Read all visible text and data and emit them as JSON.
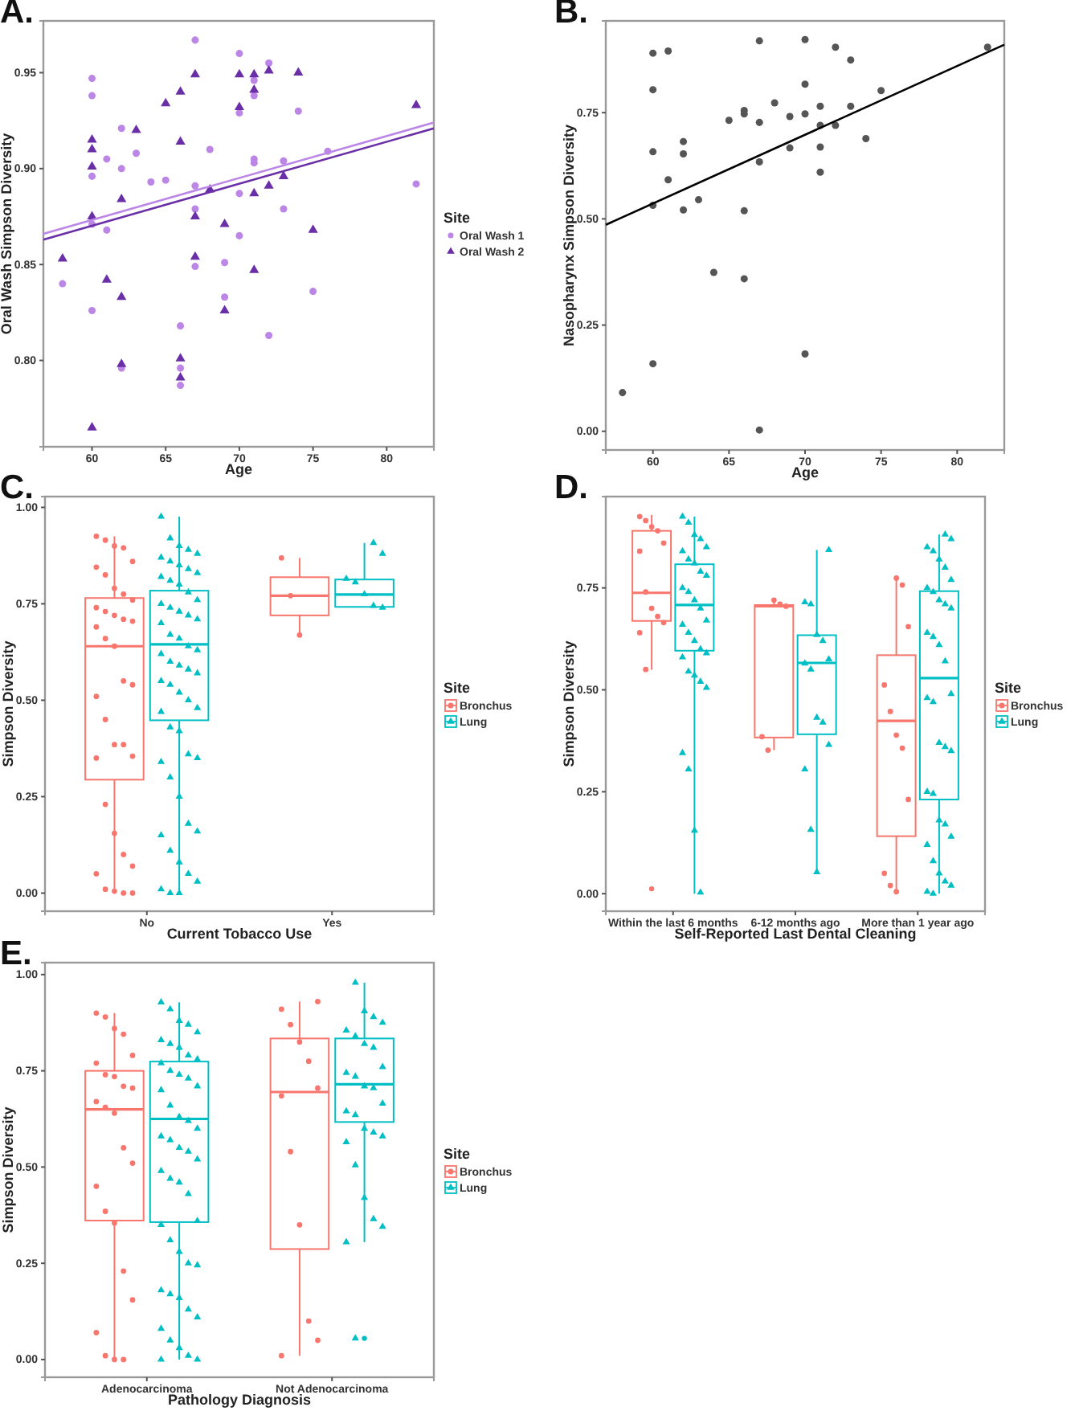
{
  "chart_data": [
    {
      "type": "scatter",
      "title": "A.",
      "xlabel": "Age",
      "ylabel": "Oral Wash Simpson Diversity",
      "legend_title": "Site",
      "legend": "right",
      "xlim": [
        56.7,
        83.2
      ],
      "ylim": [
        0.755,
        0.977
      ],
      "xticks": [
        60,
        65,
        70,
        75,
        80
      ],
      "yticks": [
        {
          "value": 0.8,
          "label": "0.80"
        },
        {
          "value": 0.85,
          "label": "0.85"
        },
        {
          "value": 0.9,
          "label": "0.90"
        },
        {
          "value": 0.95,
          "label": "0.95"
        }
      ],
      "series": [
        {
          "name": "Oral Wash 1",
          "color": "#bb86e6",
          "marker": "circle",
          "x": [
            60,
            60,
            60,
            60,
            60,
            58,
            61,
            61,
            62,
            62,
            62,
            63,
            64,
            65,
            66,
            66,
            66,
            67,
            67,
            67,
            67,
            68,
            69,
            69,
            70,
            70,
            70,
            70,
            71,
            71,
            71,
            71,
            72,
            72,
            73,
            73,
            74,
            75,
            76,
            82
          ],
          "values": [
            0.947,
            0.938,
            0.896,
            0.871,
            0.826,
            0.84,
            0.905,
            0.868,
            0.921,
            0.9,
            0.796,
            0.908,
            0.893,
            0.894,
            0.818,
            0.796,
            0.787,
            0.967,
            0.891,
            0.879,
            0.849,
            0.91,
            0.851,
            0.833,
            0.96,
            0.929,
            0.887,
            0.865,
            0.946,
            0.938,
            0.905,
            0.903,
            0.955,
            0.813,
            0.904,
            0.879,
            0.93,
            0.836,
            0.909,
            0.892
          ]
        },
        {
          "name": "Oral Wash 2",
          "color": "#6a2ea6",
          "marker": "triangle",
          "x": [
            58,
            60,
            60,
            60,
            60,
            60,
            61,
            62,
            62,
            62,
            63,
            65,
            66,
            66,
            66,
            66,
            67,
            67,
            67,
            68,
            69,
            69,
            70,
            70,
            71,
            71,
            71,
            71,
            72,
            72,
            73,
            74,
            75,
            82
          ],
          "values": [
            0.853,
            0.915,
            0.91,
            0.901,
            0.875,
            0.765,
            0.842,
            0.884,
            0.833,
            0.798,
            0.92,
            0.934,
            0.94,
            0.914,
            0.801,
            0.791,
            0.949,
            0.875,
            0.854,
            0.889,
            0.871,
            0.826,
            0.949,
            0.932,
            0.949,
            0.941,
            0.887,
            0.847,
            0.951,
            0.891,
            0.896,
            0.95,
            0.868,
            0.933
          ]
        },
        {
          "type": "line",
          "color": "#bb86e6",
          "x": [
            56.7,
            83.2
          ],
          "values": [
            0.866,
            0.924
          ]
        },
        {
          "type": "line",
          "color": "#6a2ea6",
          "x": [
            56.7,
            83.2
          ],
          "values": [
            0.863,
            0.921
          ]
        }
      ]
    },
    {
      "type": "scatter",
      "title": "B.",
      "xlabel": "Age",
      "ylabel": "Nasopharynx Simpson Diversity",
      "xlim": [
        56.9,
        83.1
      ],
      "ylim": [
        -0.044,
        0.966
      ],
      "xticks": [
        60,
        65,
        70,
        75,
        80
      ],
      "yticks": [
        {
          "value": 0,
          "label": "0.00"
        },
        {
          "value": 0.25,
          "label": "0.25"
        },
        {
          "value": 0.5,
          "label": "0.50"
        },
        {
          "value": 0.75,
          "label": "0.75"
        }
      ],
      "series": [
        {
          "color": "#555555",
          "marker": "circle",
          "x": [
            58,
            60,
            60,
            60,
            60,
            60,
            61,
            61,
            62,
            62,
            62,
            63,
            64,
            65,
            66,
            66,
            66,
            66,
            67,
            67,
            67,
            67,
            68,
            69,
            69,
            70,
            70,
            70,
            70,
            71,
            71,
            71,
            71,
            72,
            72,
            73,
            73,
            74,
            75,
            82
          ],
          "values": [
            0.091,
            0.89,
            0.804,
            0.658,
            0.532,
            0.159,
            0.895,
            0.592,
            0.682,
            0.653,
            0.521,
            0.545,
            0.374,
            0.732,
            0.755,
            0.747,
            0.519,
            0.359,
            0.919,
            0.727,
            0.634,
            0.003,
            0.773,
            0.741,
            0.667,
            0.922,
            0.817,
            0.747,
            0.182,
            0.765,
            0.669,
            0.61,
            0.72,
            0.72,
            0.904,
            0.874,
            0.765,
            0.689,
            0.802,
            0.904
          ]
        },
        {
          "type": "line",
          "color": "#000000",
          "x": [
            56.9,
            83.1
          ],
          "values": [
            0.486,
            0.91
          ]
        }
      ]
    },
    {
      "type": "box",
      "title": "C.",
      "xlabel": "Current Tobacco Use",
      "ylabel": "Simpson Diversity",
      "legend_title": "Site",
      "legend": "right",
      "categories": [
        "No",
        "Yes"
      ],
      "ylim": [
        -0.047,
        1.028
      ],
      "yticks": [
        {
          "value": 0,
          "label": "0.00"
        },
        {
          "value": 0.25,
          "label": "0.25"
        },
        {
          "value": 0.5,
          "label": "0.50"
        },
        {
          "value": 0.75,
          "label": "0.75"
        },
        {
          "value": 1,
          "label": "1.00"
        }
      ],
      "series": [
        {
          "name": "Bronchus",
          "color": "#f8766d",
          "boxes": [
            {
              "low": 0,
              "q1": 0.294,
              "median": 0.64,
              "q3": 0.765,
              "high": 0.925
            },
            {
              "low": 0.669,
              "q1": 0.72,
              "median": 0.771,
              "q3": 0.819,
              "high": 0.869
            }
          ]
        },
        {
          "name": "Lung",
          "color": "#00bfc4",
          "boxes": [
            {
              "low": 0,
              "q1": 0.448,
              "median": 0.645,
              "q3": 0.784,
              "high": 0.976
            },
            {
              "low": 0.742,
              "q1": 0.742,
              "median": 0.774,
              "q3": 0.813,
              "high": 0.908
            }
          ]
        },
        {
          "type": "scatter",
          "color": "#f8766d",
          "marker": "circle",
          "x": [
            "No",
            "No",
            "No",
            "No",
            "No",
            "No",
            "No",
            "No",
            "No",
            "No",
            "No",
            "No",
            "No",
            "No",
            "No",
            "No",
            "No",
            "No",
            "No",
            "No",
            "No",
            "No",
            "No",
            "No",
            "No",
            "No",
            "No",
            "No",
            "No",
            "No",
            "No",
            "No",
            "No",
            "No",
            "No",
            "Yes",
            "Yes",
            "Yes"
          ],
          "values": [
            0.925,
            0.915,
            0.9,
            0.895,
            0.86,
            0.845,
            0.825,
            0.79,
            0.775,
            0.76,
            0.74,
            0.73,
            0.72,
            0.71,
            0.705,
            0.69,
            0.66,
            0.64,
            0.55,
            0.54,
            0.51,
            0.45,
            0.385,
            0.385,
            0.355,
            0.35,
            0.23,
            0.155,
            0.1,
            0.07,
            0.05,
            0.01,
            0.005,
            0,
            0,
            0.869,
            0.771,
            0.669
          ]
        },
        {
          "type": "scatter",
          "color": "#00bfc4",
          "marker": "triangle",
          "x": [
            "No",
            "No",
            "No",
            "No",
            "No",
            "No",
            "No",
            "No",
            "No",
            "No",
            "No",
            "No",
            "No",
            "No",
            "No",
            "No",
            "No",
            "No",
            "No",
            "No",
            "No",
            "No",
            "No",
            "No",
            "No",
            "No",
            "No",
            "No",
            "No",
            "No",
            "No",
            "No",
            "No",
            "No",
            "No",
            "No",
            "No",
            "No",
            "No",
            "No",
            "No",
            "No",
            "No",
            "No",
            "No",
            "No",
            "No",
            "No",
            "No",
            "No",
            "No",
            "No",
            "No",
            "Yes",
            "Yes",
            "Yes",
            "Yes",
            "Yes",
            "Yes",
            "Yes"
          ],
          "values": [
            0.976,
            0.92,
            0.9,
            0.89,
            0.88,
            0.87,
            0.86,
            0.85,
            0.84,
            0.83,
            0.82,
            0.81,
            0.8,
            0.78,
            0.76,
            0.75,
            0.74,
            0.73,
            0.72,
            0.71,
            0.7,
            0.67,
            0.66,
            0.64,
            0.63,
            0.62,
            0.6,
            0.59,
            0.58,
            0.57,
            0.55,
            0.54,
            0.52,
            0.5,
            0.48,
            0.47,
            0.43,
            0.42,
            0.36,
            0.35,
            0.34,
            0.3,
            0.25,
            0.18,
            0.16,
            0.15,
            0.11,
            0.08,
            0.05,
            0.03,
            0.01,
            0,
            0,
            0.908,
            0.88,
            0.815,
            0.806,
            0.775,
            0.745,
            0.74
          ]
        }
      ]
    },
    {
      "type": "box",
      "title": "D.",
      "xlabel": "Self-Reported Last Dental Cleaning",
      "ylabel": "Simpson Diversity",
      "legend_title": "Site",
      "legend": "right",
      "categories": [
        "Within the last 6 months",
        "6-12 months ago",
        "More than 1 year ago"
      ],
      "ylim": [
        -0.043,
        0.974
      ],
      "yticks": [
        {
          "value": 0,
          "label": "0.00"
        },
        {
          "value": 0.25,
          "label": "0.25"
        },
        {
          "value": 0.5,
          "label": "0.50"
        },
        {
          "value": 0.75,
          "label": "0.75"
        }
      ],
      "series": [
        {
          "name": "Bronchus",
          "color": "#f8766d",
          "boxes": [
            {
              "low": 0.549,
              "q1": 0.669,
              "median": 0.738,
              "q3": 0.89,
              "high": 0.929,
              "outliers": [
                0.012
              ]
            },
            {
              "low": 0.352,
              "q1": 0.383,
              "median": 0.705,
              "q3": 0.708,
              "high": 0.72
            },
            {
              "low": 0,
              "q1": 0.141,
              "median": 0.424,
              "q3": 0.585,
              "high": 0.774
            }
          ]
        },
        {
          "name": "Lung",
          "color": "#00bfc4",
          "boxes": [
            {
              "low": 0,
              "q1": 0.596,
              "median": 0.708,
              "q3": 0.808,
              "high": 0.925
            },
            {
              "low": 0.053,
              "q1": 0.391,
              "median": 0.566,
              "q3": 0.634,
              "high": 0.843
            },
            {
              "low": 0,
              "q1": 0.231,
              "median": 0.529,
              "q3": 0.742,
              "high": 0.881
            }
          ]
        },
        {
          "type": "scatter",
          "color": "#f8766d",
          "marker": "circle",
          "x": [
            "Within the last 6 months",
            "Within the last 6 months",
            "Within the last 6 months",
            "Within the last 6 months",
            "Within the last 6 months",
            "Within the last 6 months",
            "Within the last 6 months",
            "Within the last 6 months",
            "Within the last 6 months",
            "Within the last 6 months",
            "Within the last 6 months",
            "Within the last 6 months",
            "6-12 months ago",
            "6-12 months ago",
            "6-12 months ago",
            "6-12 months ago",
            "6-12 months ago",
            "More than 1 year ago",
            "More than 1 year ago",
            "More than 1 year ago",
            "More than 1 year ago",
            "More than 1 year ago",
            "More than 1 year ago",
            "More than 1 year ago",
            "More than 1 year ago",
            "More than 1 year ago",
            "More than 1 year ago",
            "More than 1 year ago"
          ],
          "values": [
            0.925,
            0.915,
            0.9,
            0.89,
            0.86,
            0.84,
            0.74,
            0.7,
            0.68,
            0.665,
            0.64,
            0.55,
            0.72,
            0.71,
            0.705,
            0.385,
            0.352,
            0.774,
            0.757,
            0.655,
            0.512,
            0.447,
            0.389,
            0.357,
            0.231,
            0.05,
            0.02,
            0.005
          ]
        },
        {
          "type": "scatter",
          "color": "#00bfc4",
          "marker": "triangle",
          "x": [
            "Within the last 6 months",
            "Within the last 6 months",
            "Within the last 6 months",
            "Within the last 6 months",
            "Within the last 6 months",
            "Within the last 6 months",
            "Within the last 6 months",
            "Within the last 6 months",
            "Within the last 6 months",
            "Within the last 6 months",
            "Within the last 6 months",
            "Within the last 6 months",
            "Within the last 6 months",
            "Within the last 6 months",
            "Within the last 6 months",
            "Within the last 6 months",
            "Within the last 6 months",
            "Within the last 6 months",
            "Within the last 6 months",
            "Within the last 6 months",
            "Within the last 6 months",
            "Within the last 6 months",
            "Within the last 6 months",
            "Within the last 6 months",
            "Within the last 6 months",
            "Within the last 6 months",
            "Within the last 6 months",
            "Within the last 6 months",
            "Within the last 6 months",
            "6-12 months ago",
            "6-12 months ago",
            "6-12 months ago",
            "6-12 months ago",
            "6-12 months ago",
            "6-12 months ago",
            "6-12 months ago",
            "6-12 months ago",
            "6-12 months ago",
            "6-12 months ago",
            "6-12 months ago",
            "6-12 months ago",
            "6-12 months ago",
            "6-12 months ago",
            "More than 1 year ago",
            "More than 1 year ago",
            "More than 1 year ago",
            "More than 1 year ago",
            "More than 1 year ago",
            "More than 1 year ago",
            "More than 1 year ago",
            "More than 1 year ago",
            "More than 1 year ago",
            "More than 1 year ago",
            "More than 1 year ago",
            "More than 1 year ago",
            "More than 1 year ago",
            "More than 1 year ago",
            "More than 1 year ago",
            "More than 1 year ago",
            "More than 1 year ago",
            "More than 1 year ago",
            "More than 1 year ago",
            "More than 1 year ago",
            "More than 1 year ago",
            "More than 1 year ago",
            "More than 1 year ago",
            "More than 1 year ago",
            "More than 1 year ago",
            "More than 1 year ago",
            "More than 1 year ago",
            "More than 1 year ago",
            "More than 1 year ago",
            "More than 1 year ago",
            "More than 1 year ago",
            "More than 1 year ago",
            "More than 1 year ago",
            "More than 1 year ago"
          ],
          "values": [
            0.925,
            0.91,
            0.88,
            0.87,
            0.85,
            0.84,
            0.82,
            0.81,
            0.79,
            0.78,
            0.75,
            0.74,
            0.72,
            0.7,
            0.67,
            0.66,
            0.64,
            0.62,
            0.6,
            0.59,
            0.58,
            0.545,
            0.535,
            0.52,
            0.505,
            0.345,
            0.305,
            0.155,
            0.003,
            0.843,
            0.715,
            0.71,
            0.635,
            0.62,
            0.575,
            0.565,
            0.55,
            0.432,
            0.42,
            0.365,
            0.305,
            0.157,
            0.053,
            0.881,
            0.87,
            0.85,
            0.84,
            0.82,
            0.8,
            0.77,
            0.75,
            0.74,
            0.72,
            0.71,
            0.7,
            0.64,
            0.63,
            0.61,
            0.57,
            0.49,
            0.48,
            0.47,
            0.37,
            0.36,
            0.35,
            0.25,
            0.245,
            0.18,
            0.17,
            0.14,
            0.12,
            0.08,
            0.05,
            0.03,
            0.02,
            0.005,
            0
          ]
        }
      ]
    },
    {
      "type": "box",
      "title": "E.",
      "xlabel": "Pathology Diagnosis",
      "ylabel": "Simpson Diversity",
      "legend_title": "Site",
      "legend": "right",
      "categories": [
        "Adenocarcinoma",
        "Not Adenocarcinoma"
      ],
      "ylim": [
        -0.046,
        1.031
      ],
      "yticks": [
        {
          "value": 0,
          "label": "0.00"
        },
        {
          "value": 0.25,
          "label": "0.25"
        },
        {
          "value": 0.5,
          "label": "0.50"
        },
        {
          "value": 0.75,
          "label": "0.75"
        },
        {
          "value": 1,
          "label": "1.00"
        }
      ],
      "series": [
        {
          "name": "Bronchus",
          "color": "#f8766d",
          "boxes": [
            {
              "low": 0,
              "q1": 0.361,
              "median": 0.65,
              "q3": 0.75,
              "high": 0.9
            },
            {
              "low": 0.01,
              "q1": 0.287,
              "median": 0.695,
              "q3": 0.834,
              "high": 0.93
            }
          ]
        },
        {
          "name": "Lung",
          "color": "#00bfc4",
          "boxes": [
            {
              "low": 0,
              "q1": 0.357,
              "median": 0.625,
              "q3": 0.774,
              "high": 0.928
            },
            {
              "low": 0.305,
              "q1": 0.617,
              "median": 0.715,
              "q3": 0.834,
              "high": 0.979,
              "outliers": [
                0.055
              ]
            }
          ]
        },
        {
          "type": "scatter",
          "color": "#f8766d",
          "marker": "circle",
          "x": [
            "Adenocarcinoma",
            "Adenocarcinoma",
            "Adenocarcinoma",
            "Adenocarcinoma",
            "Adenocarcinoma",
            "Adenocarcinoma",
            "Adenocarcinoma",
            "Adenocarcinoma",
            "Adenocarcinoma",
            "Adenocarcinoma",
            "Adenocarcinoma",
            "Adenocarcinoma",
            "Adenocarcinoma",
            "Adenocarcinoma",
            "Adenocarcinoma",
            "Adenocarcinoma",
            "Adenocarcinoma",
            "Adenocarcinoma",
            "Adenocarcinoma",
            "Adenocarcinoma",
            "Adenocarcinoma",
            "Adenocarcinoma",
            "Adenocarcinoma",
            "Adenocarcinoma",
            "Not Adenocarcinoma",
            "Not Adenocarcinoma",
            "Not Adenocarcinoma",
            "Not Adenocarcinoma",
            "Not Adenocarcinoma",
            "Not Adenocarcinoma",
            "Not Adenocarcinoma",
            "Not Adenocarcinoma",
            "Not Adenocarcinoma",
            "Not Adenocarcinoma",
            "Not Adenocarcinoma",
            "Not Adenocarcinoma"
          ],
          "values": [
            0.9,
            0.89,
            0.86,
            0.845,
            0.79,
            0.77,
            0.74,
            0.735,
            0.71,
            0.705,
            0.67,
            0.655,
            0.64,
            0.55,
            0.51,
            0.45,
            0.385,
            0.355,
            0.23,
            0.155,
            0.07,
            0.01,
            0,
            0,
            0.93,
            0.91,
            0.87,
            0.825,
            0.775,
            0.705,
            0.685,
            0.54,
            0.35,
            0.1,
            0.05,
            0.01
          ]
        },
        {
          "type": "scatter",
          "color": "#00bfc4",
          "marker": "triangle",
          "x": [
            "Adenocarcinoma",
            "Adenocarcinoma",
            "Adenocarcinoma",
            "Adenocarcinoma",
            "Adenocarcinoma",
            "Adenocarcinoma",
            "Adenocarcinoma",
            "Adenocarcinoma",
            "Adenocarcinoma",
            "Adenocarcinoma",
            "Adenocarcinoma",
            "Adenocarcinoma",
            "Adenocarcinoma",
            "Adenocarcinoma",
            "Adenocarcinoma",
            "Adenocarcinoma",
            "Adenocarcinoma",
            "Adenocarcinoma",
            "Adenocarcinoma",
            "Adenocarcinoma",
            "Adenocarcinoma",
            "Adenocarcinoma",
            "Adenocarcinoma",
            "Adenocarcinoma",
            "Adenocarcinoma",
            "Adenocarcinoma",
            "Adenocarcinoma",
            "Adenocarcinoma",
            "Adenocarcinoma",
            "Adenocarcinoma",
            "Adenocarcinoma",
            "Adenocarcinoma",
            "Adenocarcinoma",
            "Adenocarcinoma",
            "Adenocarcinoma",
            "Adenocarcinoma",
            "Adenocarcinoma",
            "Adenocarcinoma",
            "Adenocarcinoma",
            "Adenocarcinoma",
            "Adenocarcinoma",
            "Adenocarcinoma",
            "Adenocarcinoma",
            "Adenocarcinoma",
            "Adenocarcinoma",
            "Adenocarcinoma",
            "Not Adenocarcinoma",
            "Not Adenocarcinoma",
            "Not Adenocarcinoma",
            "Not Adenocarcinoma",
            "Not Adenocarcinoma",
            "Not Adenocarcinoma",
            "Not Adenocarcinoma",
            "Not Adenocarcinoma",
            "Not Adenocarcinoma",
            "Not Adenocarcinoma",
            "Not Adenocarcinoma",
            "Not Adenocarcinoma",
            "Not Adenocarcinoma",
            "Not Adenocarcinoma",
            "Not Adenocarcinoma",
            "Not Adenocarcinoma",
            "Not Adenocarcinoma",
            "Not Adenocarcinoma",
            "Not Adenocarcinoma",
            "Not Adenocarcinoma",
            "Not Adenocarcinoma",
            "Not Adenocarcinoma",
            "Not Adenocarcinoma",
            "Not Adenocarcinoma",
            "Not Adenocarcinoma",
            "Not Adenocarcinoma"
          ],
          "values": [
            0.928,
            0.91,
            0.88,
            0.87,
            0.85,
            0.83,
            0.82,
            0.81,
            0.79,
            0.78,
            0.77,
            0.75,
            0.74,
            0.73,
            0.71,
            0.7,
            0.66,
            0.63,
            0.62,
            0.6,
            0.58,
            0.57,
            0.55,
            0.54,
            0.52,
            0.49,
            0.47,
            0.46,
            0.43,
            0.36,
            0.35,
            0.31,
            0.28,
            0.25,
            0.245,
            0.18,
            0.17,
            0.16,
            0.13,
            0.11,
            0.08,
            0.05,
            0.03,
            0.01,
            0,
            0,
            0.979,
            0.905,
            0.89,
            0.875,
            0.855,
            0.84,
            0.82,
            0.81,
            0.76,
            0.745,
            0.735,
            0.71,
            0.705,
            0.665,
            0.645,
            0.635,
            0.6,
            0.59,
            0.58,
            0.565,
            0.505,
            0.42,
            0.365,
            0.345,
            0.305,
            0.055
          ]
        }
      ]
    }
  ]
}
